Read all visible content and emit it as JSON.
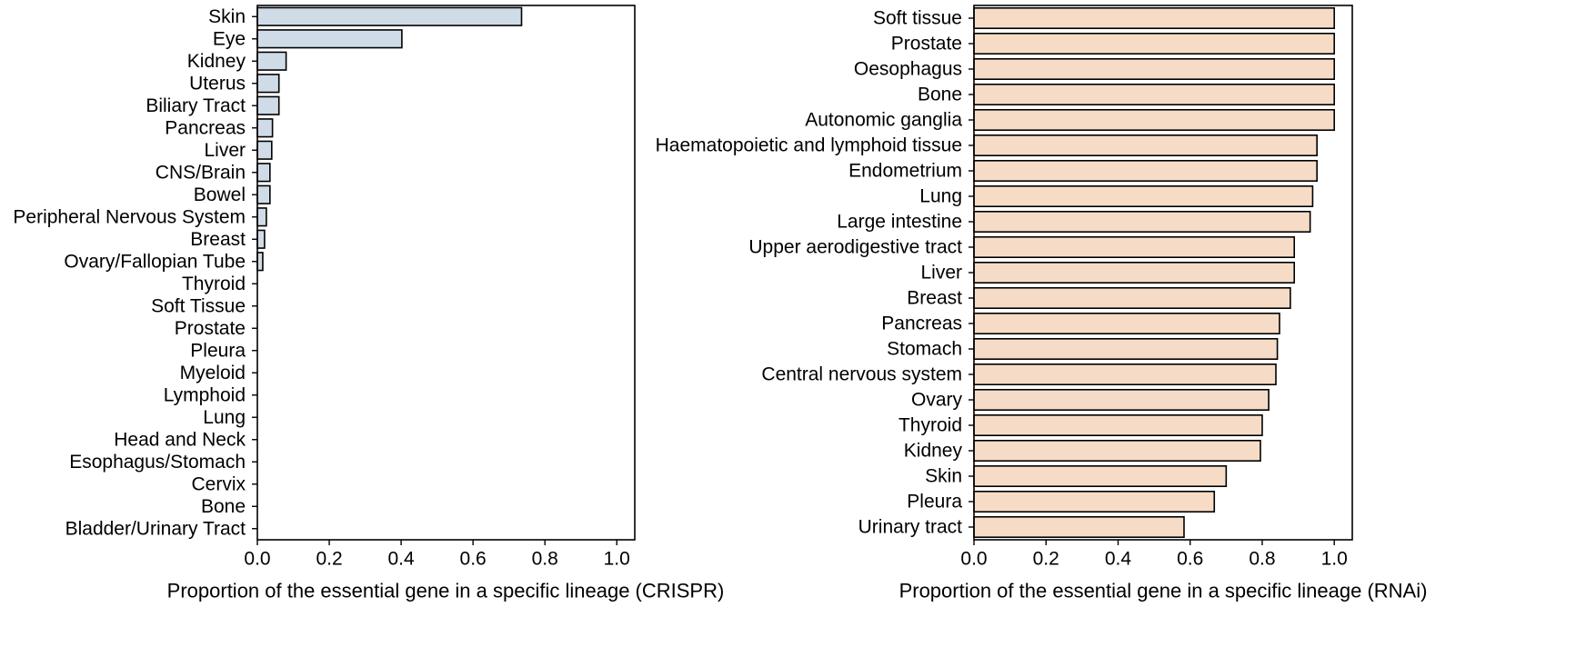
{
  "chart_data": [
    {
      "type": "bar",
      "orientation": "horizontal",
      "xlabel": "Proportion of the essential gene in a specific lineage (CRISPR)",
      "xlim": [
        0,
        1.05
      ],
      "xticks": [
        "0.0",
        "0.2",
        "0.4",
        "0.6",
        "0.8",
        "1.0"
      ],
      "bar_color": "#cfdce7",
      "edge_color": "#000000",
      "grid": false,
      "categories": [
        "Skin",
        "Eye",
        "Kidney",
        "Uterus",
        "Biliary Tract",
        "Pancreas",
        "Liver",
        "CNS/Brain",
        "Bowel",
        "Peripheral Nervous System",
        "Breast",
        "Ovary/Fallopian Tube",
        "Thyroid",
        "Soft Tissue",
        "Prostate",
        "Pleura",
        "Myeloid",
        "Lymphoid",
        "Lung",
        "Head and Neck",
        "Esophagus/Stomach",
        "Cervix",
        "Bone",
        "Bladder/Urinary Tract"
      ],
      "values": [
        0.735,
        0.402,
        0.08,
        0.06,
        0.06,
        0.042,
        0.04,
        0.035,
        0.035,
        0.025,
        0.02,
        0.015,
        0,
        0,
        0,
        0,
        0,
        0,
        0,
        0,
        0,
        0,
        0,
        0
      ]
    },
    {
      "type": "bar",
      "orientation": "horizontal",
      "xlabel": "Proportion of the essential gene in a specific lineage (RNAi)",
      "xlim": [
        0,
        1.05
      ],
      "xticks": [
        "0.0",
        "0.2",
        "0.4",
        "0.6",
        "0.8",
        "1.0"
      ],
      "bar_color": "#f6dcc6",
      "edge_color": "#000000",
      "grid": false,
      "categories": [
        "Soft tissue",
        "Prostate",
        "Oesophagus",
        "Bone",
        "Autonomic ganglia",
        "Haematopoietic and lymphoid tissue",
        "Endometrium",
        "Lung",
        "Large intestine",
        "Upper aerodigestive tract",
        "Liver",
        "Breast",
        "Pancreas",
        "Stomach",
        "Central nervous system",
        "Ovary",
        "Thyroid",
        "Kidney",
        "Skin",
        "Pleura",
        "Urinary tract"
      ],
      "values": [
        1.0,
        1.0,
        1.0,
        1.0,
        1.0,
        0.952,
        0.952,
        0.94,
        0.933,
        0.889,
        0.889,
        0.878,
        0.848,
        0.842,
        0.838,
        0.818,
        0.8,
        0.795,
        0.7,
        0.667,
        0.583
      ]
    }
  ]
}
